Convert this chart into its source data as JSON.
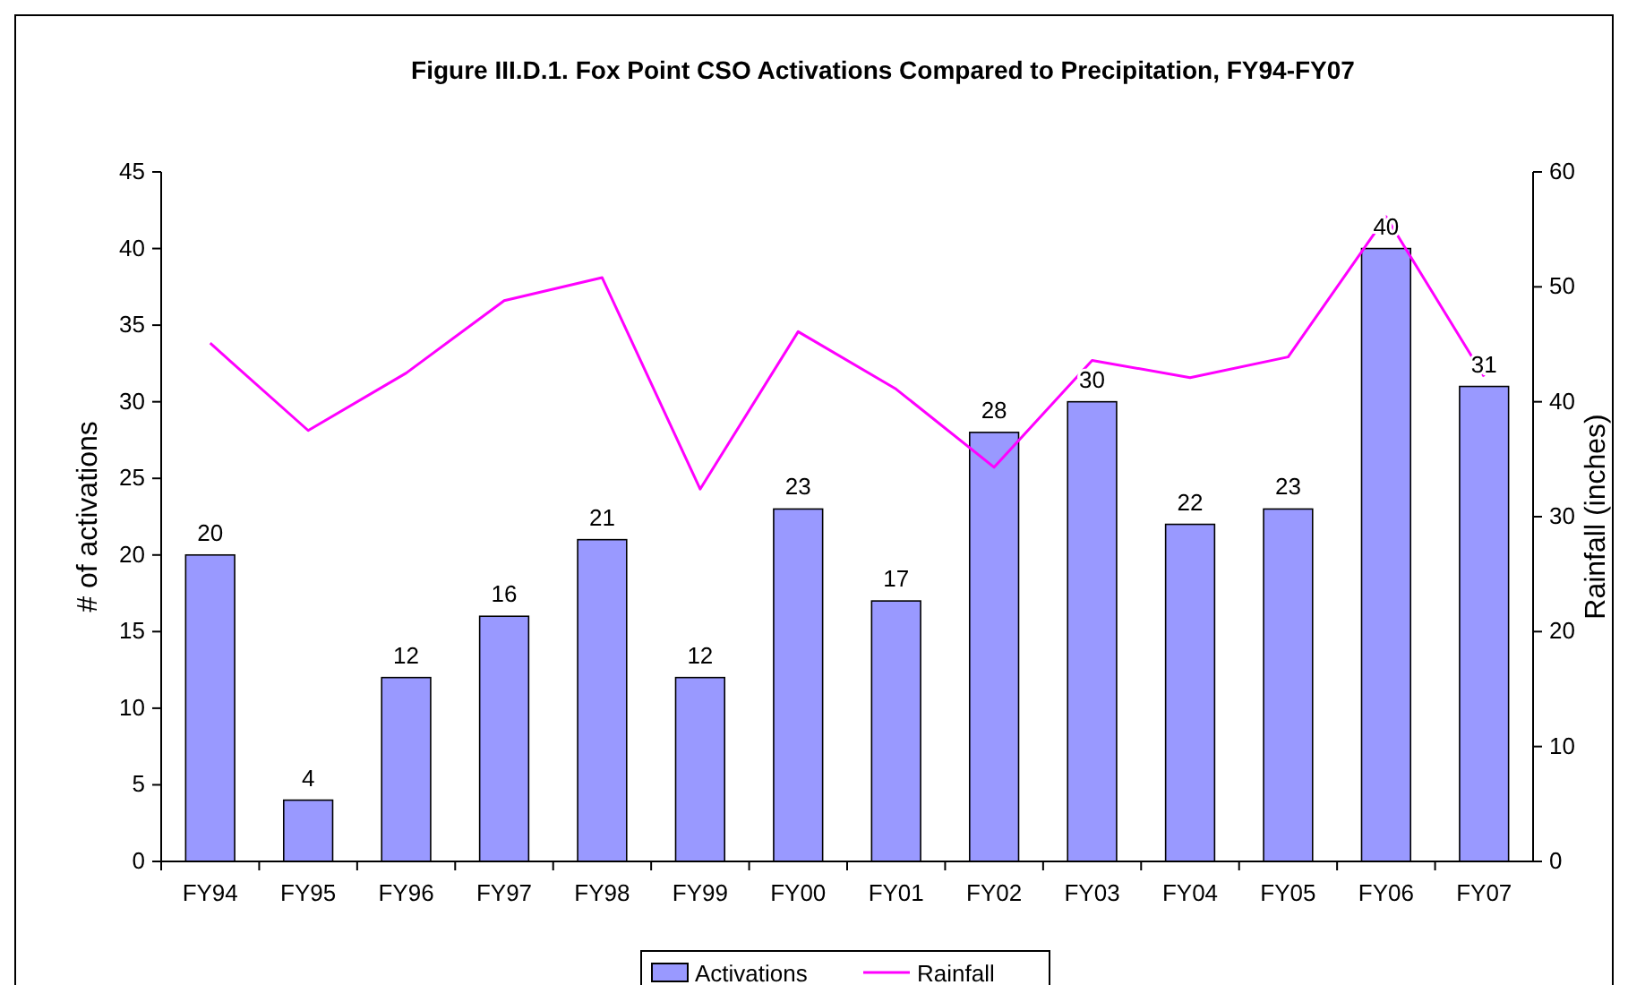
{
  "chart_data": {
    "type": "bar",
    "title": "Figure III.D.1.  Fox Point CSO Activations Compared to Precipitation, FY94-FY07",
    "ylabel": "# of activations",
    "y2label": "Rainfall (inches)",
    "categories": [
      "FY94",
      "FY95",
      "FY96",
      "FY97",
      "FY98",
      "FY99",
      "FY00",
      "FY01",
      "FY02",
      "FY03",
      "FY04",
      "FY05",
      "FY06",
      "FY07"
    ],
    "series": [
      {
        "name": "Activations",
        "color": "#9999ff",
        "values": [
          20,
          4,
          12,
          16,
          21,
          12,
          23,
          17,
          28,
          30,
          22,
          23,
          40,
          31
        ],
        "value_labels": [
          "20",
          "4",
          "12",
          "16",
          "21",
          "12",
          "23",
          "17",
          "28",
          "30",
          "22",
          "23",
          "40",
          "31"
        ]
      },
      {
        "name": "Rainfall",
        "type": "line",
        "axis": "y2",
        "color": "#ff00ff",
        "values": [
          45.1,
          37.5,
          42.5,
          48.8,
          50.8,
          32.4,
          46.1,
          41.1,
          34.3,
          43.6,
          42.1,
          43.9,
          56.1,
          42.2
        ]
      }
    ],
    "ylim": [
      0,
      45
    ],
    "yticks": [
      0,
      5,
      10,
      15,
      20,
      25,
      30,
      35,
      40,
      45
    ],
    "y2lim": [
      0,
      60
    ],
    "y2ticks": [
      0,
      10,
      20,
      30,
      40,
      50,
      60
    ],
    "legend": "bottom",
    "grid": false
  }
}
